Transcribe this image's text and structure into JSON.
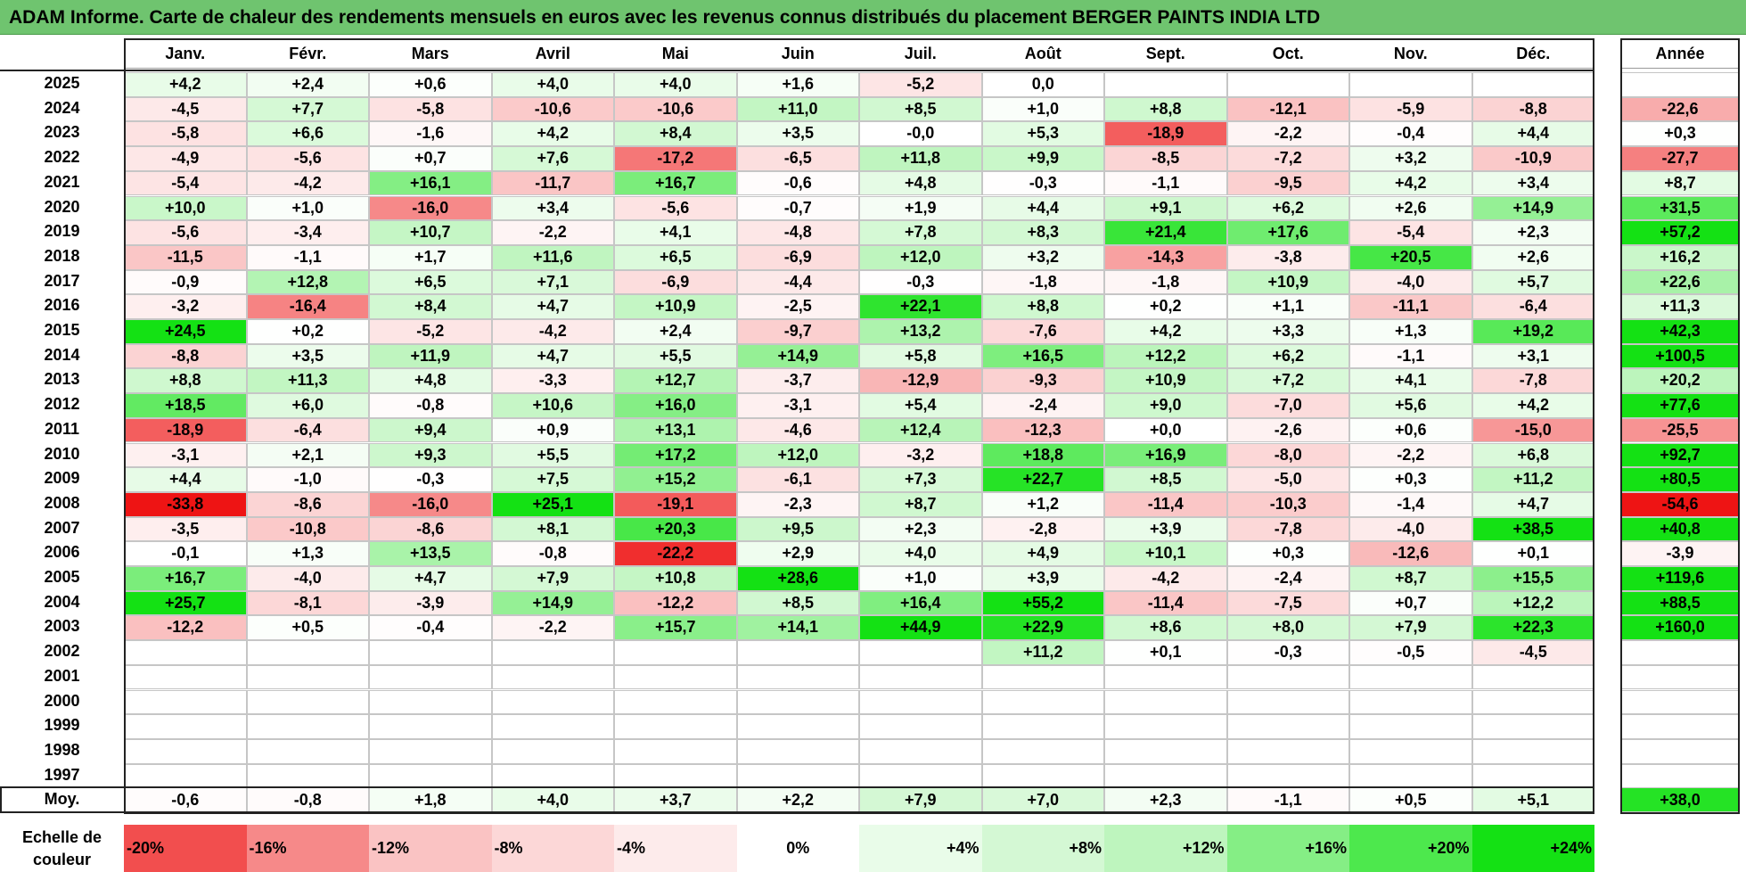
{
  "title": "ADAM Informe. Carte de chaleur des rendements mensuels en euros avec les revenus connus distribués du placement BERGER PAINTS INDIA LTD",
  "chart_data": {
    "type": "heatmap",
    "title": "ADAM Informe. Carte de chaleur des rendements mensuels en euros avec les revenus connus distribués du placement BERGER PAINTS INDIA LTD",
    "columns": [
      "Janv.",
      "Févr.",
      "Mars",
      "Avril",
      "Mai",
      "Juin",
      "Juil.",
      "Août",
      "Sept.",
      "Oct.",
      "Nov.",
      "Déc."
    ],
    "year_column_label": "Année",
    "rows": [
      {
        "year": "2025",
        "months": [
          "+4,2",
          "+2,4",
          "+0,6",
          "+4,0",
          "+4,0",
          "+1,6",
          "-5,2",
          "0,0",
          "",
          "",
          "",
          ""
        ],
        "annual": ""
      },
      {
        "year": "2024",
        "months": [
          "-4,5",
          "+7,7",
          "-5,8",
          "-10,6",
          "-10,6",
          "+11,0",
          "+8,5",
          "+1,0",
          "+8,8",
          "-12,1",
          "-5,9",
          "-8,8"
        ],
        "annual": "-22,6"
      },
      {
        "year": "2023",
        "months": [
          "-5,8",
          "+6,6",
          "-1,6",
          "+4,2",
          "+8,4",
          "+3,5",
          "-0,0",
          "+5,3",
          "-18,9",
          "-2,2",
          "-0,4",
          "+4,4"
        ],
        "annual": "+0,3"
      },
      {
        "year": "2022",
        "months": [
          "-4,9",
          "-5,6",
          "+0,7",
          "+7,6",
          "-17,2",
          "-6,5",
          "+11,8",
          "+9,9",
          "-8,5",
          "-7,2",
          "+3,2",
          "-10,9"
        ],
        "annual": "-27,7"
      },
      {
        "year": "2021",
        "months": [
          "-5,4",
          "-4,2",
          "+16,1",
          "-11,7",
          "+16,7",
          "-0,6",
          "+4,8",
          "-0,3",
          "-1,1",
          "-9,5",
          "+4,2",
          "+3,4"
        ],
        "annual": "+8,7"
      },
      {
        "year": "2020",
        "months": [
          "+10,0",
          "+1,0",
          "-16,0",
          "+3,4",
          "-5,6",
          "-0,7",
          "+1,9",
          "+4,4",
          "+9,1",
          "+6,2",
          "+2,6",
          "+14,9"
        ],
        "annual": "+31,5"
      },
      {
        "year": "2019",
        "months": [
          "-5,6",
          "-3,4",
          "+10,7",
          "-2,2",
          "+4,1",
          "-4,8",
          "+7,8",
          "+8,3",
          "+21,4",
          "+17,6",
          "-5,4",
          "+2,3"
        ],
        "annual": "+57,2"
      },
      {
        "year": "2018",
        "months": [
          "-11,5",
          "-1,1",
          "+1,7",
          "+11,6",
          "+6,5",
          "-6,9",
          "+12,0",
          "+3,2",
          "-14,3",
          "-3,8",
          "+20,5",
          "+2,6"
        ],
        "annual": "+16,2"
      },
      {
        "year": "2017",
        "months": [
          "-0,9",
          "+12,8",
          "+6,5",
          "+7,1",
          "-6,9",
          "-4,4",
          "-0,3",
          "-1,8",
          "-1,8",
          "+10,9",
          "-4,0",
          "+5,7"
        ],
        "annual": "+22,6"
      },
      {
        "year": "2016",
        "months": [
          "-3,2",
          "-16,4",
          "+8,4",
          "+4,7",
          "+10,9",
          "-2,5",
          "+22,1",
          "+8,8",
          "+0,2",
          "+1,1",
          "-11,1",
          "-6,4"
        ],
        "annual": "+11,3"
      },
      {
        "year": "2015",
        "months": [
          "+24,5",
          "+0,2",
          "-5,2",
          "-4,2",
          "+2,4",
          "-9,7",
          "+13,2",
          "-7,6",
          "+4,2",
          "+3,3",
          "+1,3",
          "+19,2"
        ],
        "annual": "+42,3"
      },
      {
        "year": "2014",
        "months": [
          "-8,8",
          "+3,5",
          "+11,9",
          "+4,7",
          "+5,5",
          "+14,9",
          "+5,8",
          "+16,5",
          "+12,2",
          "+6,2",
          "-1,1",
          "+3,1"
        ],
        "annual": "+100,5"
      },
      {
        "year": "2013",
        "months": [
          "+8,8",
          "+11,3",
          "+4,8",
          "-3,3",
          "+12,7",
          "-3,7",
          "-12,9",
          "-9,3",
          "+10,9",
          "+7,2",
          "+4,1",
          "-7,8"
        ],
        "annual": "+20,2"
      },
      {
        "year": "2012",
        "months": [
          "+18,5",
          "+6,0",
          "-0,8",
          "+10,6",
          "+16,0",
          "-3,1",
          "+5,4",
          "-2,4",
          "+9,0",
          "-7,0",
          "+5,6",
          "+4,2"
        ],
        "annual": "+77,6"
      },
      {
        "year": "2011",
        "months": [
          "-18,9",
          "-6,4",
          "+9,4",
          "+0,9",
          "+13,1",
          "-4,6",
          "+12,4",
          "-12,3",
          "+0,0",
          "-2,6",
          "+0,6",
          "-15,0"
        ],
        "annual": "-25,5"
      },
      {
        "year": "2010",
        "months": [
          "-3,1",
          "+2,1",
          "+9,3",
          "+5,5",
          "+17,2",
          "+12,0",
          "-3,2",
          "+18,8",
          "+16,9",
          "-8,0",
          "-2,2",
          "+6,8"
        ],
        "annual": "+92,7"
      },
      {
        "year": "2009",
        "months": [
          "+4,4",
          "-1,0",
          "-0,3",
          "+7,5",
          "+15,2",
          "-6,1",
          "+7,3",
          "+22,7",
          "+8,5",
          "-5,0",
          "+0,3",
          "+11,2"
        ],
        "annual": "+80,5"
      },
      {
        "year": "2008",
        "months": [
          "-33,8",
          "-8,6",
          "-16,0",
          "+25,1",
          "-19,1",
          "-2,3",
          "+8,7",
          "+1,2",
          "-11,4",
          "-10,3",
          "-1,4",
          "+4,7"
        ],
        "annual": "-54,6"
      },
      {
        "year": "2007",
        "months": [
          "-3,5",
          "-10,8",
          "-8,6",
          "+8,1",
          "+20,3",
          "+9,5",
          "+2,3",
          "-2,8",
          "+3,9",
          "-7,8",
          "-4,0",
          "+38,5"
        ],
        "annual": "+40,8"
      },
      {
        "year": "2006",
        "months": [
          "-0,1",
          "+1,3",
          "+13,5",
          "-0,8",
          "-22,2",
          "+2,9",
          "+4,0",
          "+4,9",
          "+10,1",
          "+0,3",
          "-12,6",
          "+0,1"
        ],
        "annual": "-3,9"
      },
      {
        "year": "2005",
        "months": [
          "+16,7",
          "-4,0",
          "+4,7",
          "+7,9",
          "+10,8",
          "+28,6",
          "+1,0",
          "+3,9",
          "-4,2",
          "-2,4",
          "+8,7",
          "+15,5"
        ],
        "annual": "+119,6"
      },
      {
        "year": "2004",
        "months": [
          "+25,7",
          "-8,1",
          "-3,9",
          "+14,9",
          "-12,2",
          "+8,5",
          "+16,4",
          "+55,2",
          "-11,4",
          "-7,5",
          "+0,7",
          "+12,2"
        ],
        "annual": "+88,5"
      },
      {
        "year": "2003",
        "months": [
          "-12,2",
          "+0,5",
          "-0,4",
          "-2,2",
          "+15,7",
          "+14,1",
          "+44,9",
          "+22,9",
          "+8,6",
          "+8,0",
          "+7,9",
          "+22,3"
        ],
        "annual": "+160,0"
      },
      {
        "year": "2002",
        "months": [
          "",
          "",
          "",
          "",
          "",
          "",
          "",
          "+11,2",
          "+0,1",
          "-0,3",
          "-0,5",
          "-4,5"
        ],
        "annual": ""
      },
      {
        "year": "2001",
        "months": [
          "",
          "",
          "",
          "",
          "",
          "",
          "",
          "",
          "",
          "",
          "",
          ""
        ],
        "annual": ""
      },
      {
        "year": "2000",
        "months": [
          "",
          "",
          "",
          "",
          "",
          "",
          "",
          "",
          "",
          "",
          "",
          ""
        ],
        "annual": ""
      },
      {
        "year": "1999",
        "months": [
          "",
          "",
          "",
          "",
          "",
          "",
          "",
          "",
          "",
          "",
          "",
          ""
        ],
        "annual": ""
      },
      {
        "year": "1998",
        "months": [
          "",
          "",
          "",
          "",
          "",
          "",
          "",
          "",
          "",
          "",
          "",
          ""
        ],
        "annual": ""
      },
      {
        "year": "1997",
        "months": [
          "",
          "",
          "",
          "",
          "",
          "",
          "",
          "",
          "",
          "",
          "",
          ""
        ],
        "annual": ""
      }
    ],
    "average": {
      "label": "Moy.",
      "months": [
        "-0,6",
        "-0,8",
        "+1,8",
        "+4,0",
        "+3,7",
        "+2,2",
        "+7,9",
        "+7,0",
        "+2,3",
        "-1,1",
        "+0,5",
        "+5,1"
      ],
      "annual": "+38,0"
    },
    "scale": {
      "label": "Echelle de couleur",
      "steps": [
        "-20%",
        "-16%",
        "-12%",
        "-8%",
        "-4%",
        "0%",
        "+4%",
        "+8%",
        "+12%",
        "+16%",
        "+20%",
        "+24%"
      ]
    }
  }
}
